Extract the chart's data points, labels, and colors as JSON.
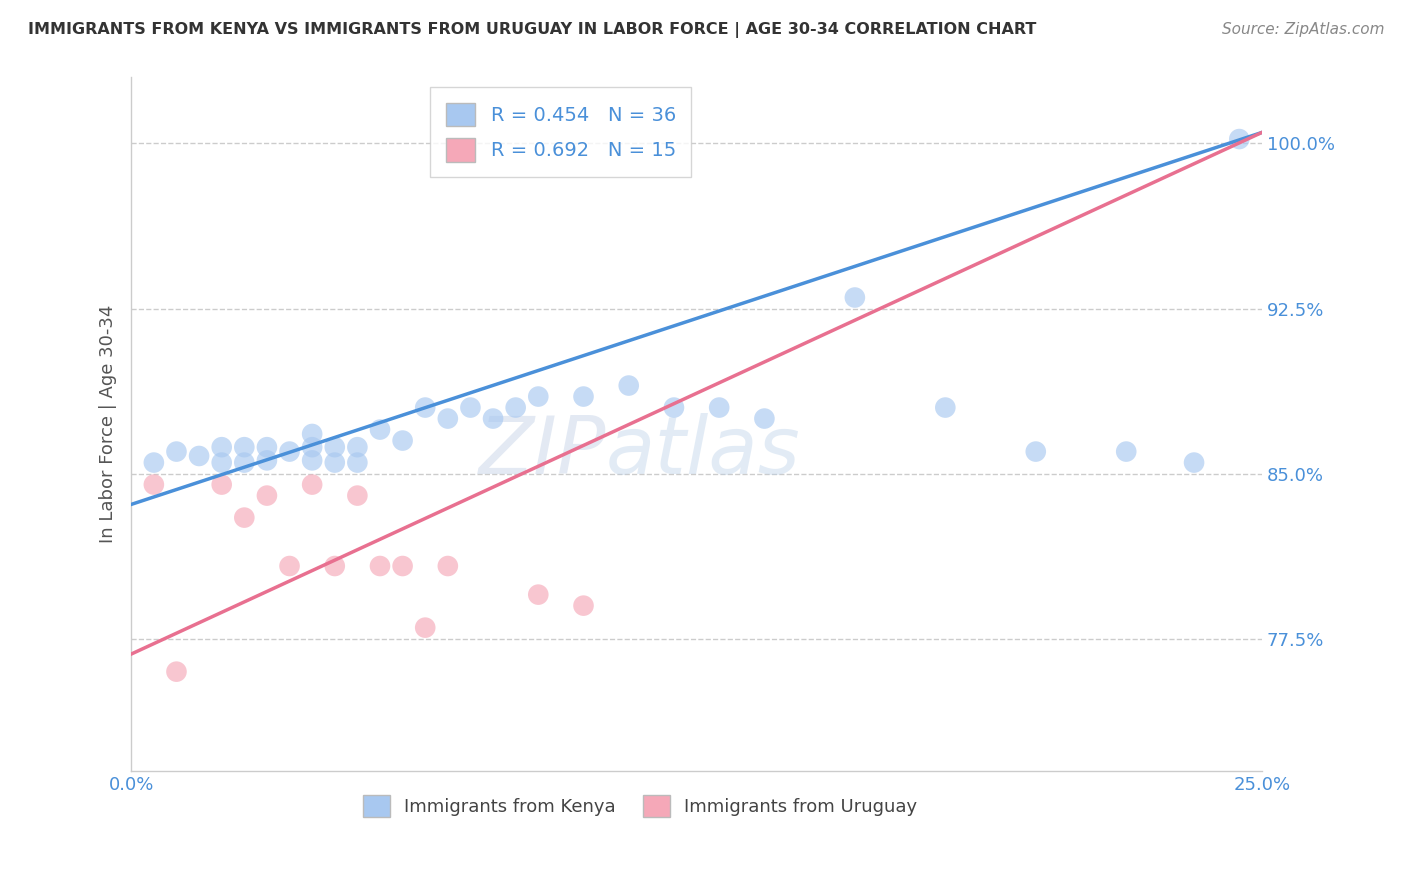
{
  "title": "IMMIGRANTS FROM KENYA VS IMMIGRANTS FROM URUGUAY IN LABOR FORCE | AGE 30-34 CORRELATION CHART",
  "source": "Source: ZipAtlas.com",
  "xlabel": "",
  "ylabel": "In Labor Force | Age 30-34",
  "xlim": [
    0.0,
    0.25
  ],
  "ylim": [
    0.715,
    1.03
  ],
  "ytick_labels": [
    "77.5%",
    "85.0%",
    "92.5%",
    "100.0%"
  ],
  "ytick_values": [
    0.775,
    0.85,
    0.925,
    1.0
  ],
  "xtick_labels": [
    "0.0%",
    "25.0%"
  ],
  "xtick_values": [
    0.0,
    0.25
  ],
  "kenya_R": 0.454,
  "kenya_N": 36,
  "uruguay_R": 0.692,
  "uruguay_N": 15,
  "kenya_color": "#a8c8f0",
  "uruguay_color": "#f5a8b8",
  "kenya_line_color": "#4a90d9",
  "uruguay_line_color": "#e87090",
  "kenya_line_x0": 0.0,
  "kenya_line_y0": 0.836,
  "kenya_line_x1": 0.25,
  "kenya_line_y1": 1.005,
  "uruguay_line_x0": 0.0,
  "uruguay_line_y0": 0.768,
  "uruguay_line_x1": 0.25,
  "uruguay_line_y1": 1.005,
  "kenya_scatter_x": [
    0.005,
    0.01,
    0.015,
    0.02,
    0.02,
    0.025,
    0.025,
    0.03,
    0.03,
    0.035,
    0.04,
    0.04,
    0.04,
    0.045,
    0.045,
    0.05,
    0.05,
    0.055,
    0.06,
    0.065,
    0.07,
    0.075,
    0.08,
    0.085,
    0.09,
    0.1,
    0.11,
    0.12,
    0.13,
    0.14,
    0.16,
    0.18,
    0.2,
    0.22,
    0.235,
    0.245
  ],
  "kenya_scatter_y": [
    0.855,
    0.86,
    0.858,
    0.855,
    0.862,
    0.855,
    0.862,
    0.856,
    0.862,
    0.86,
    0.856,
    0.862,
    0.868,
    0.855,
    0.862,
    0.855,
    0.862,
    0.87,
    0.865,
    0.88,
    0.875,
    0.88,
    0.875,
    0.88,
    0.885,
    0.885,
    0.89,
    0.88,
    0.88,
    0.875,
    0.93,
    0.88,
    0.86,
    0.86,
    0.855,
    1.002
  ],
  "uruguay_scatter_x": [
    0.005,
    0.01,
    0.02,
    0.025,
    0.03,
    0.035,
    0.04,
    0.045,
    0.05,
    0.055,
    0.06,
    0.065,
    0.07,
    0.09,
    0.1
  ],
  "uruguay_scatter_y": [
    0.845,
    0.76,
    0.845,
    0.83,
    0.84,
    0.808,
    0.845,
    0.808,
    0.84,
    0.808,
    0.808,
    0.78,
    0.808,
    0.795,
    0.79
  ],
  "watermark_zip": "ZIP",
  "watermark_atlas": "atlas",
  "grid_color": "#cccccc",
  "background_color": "#ffffff"
}
